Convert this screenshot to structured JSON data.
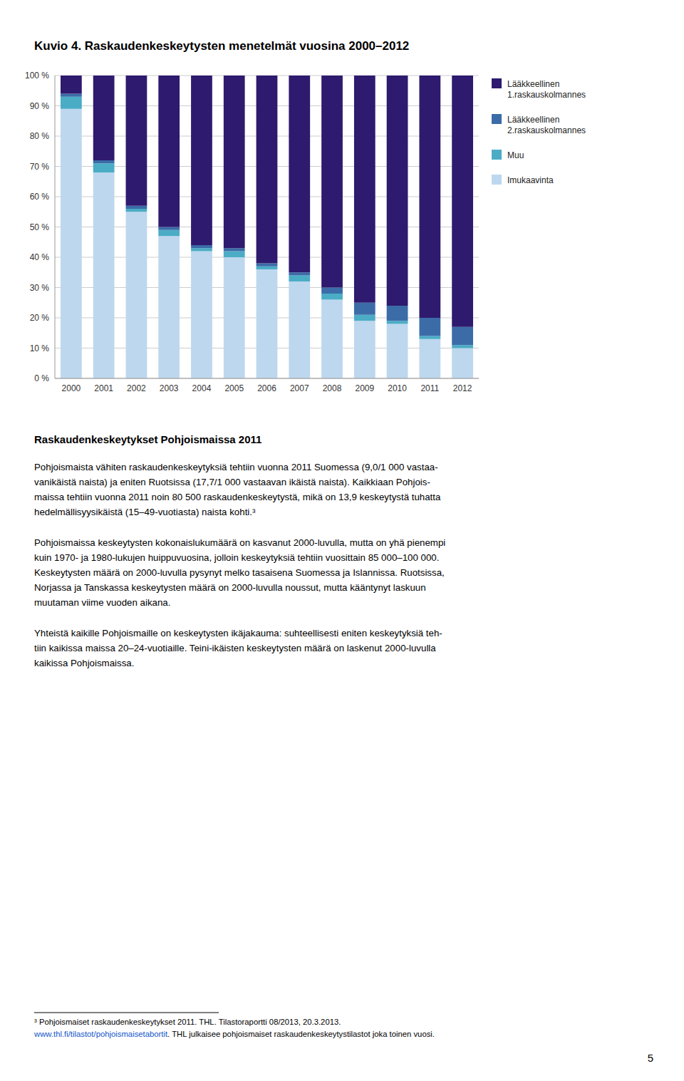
{
  "chart_data": {
    "type": "bar",
    "stacked": true,
    "title": "Kuvio 4. Raskaudenkeskeytysten menetelmät vuosina 2000–2012",
    "categories": [
      "2000",
      "2001",
      "2002",
      "2003",
      "2004",
      "2005",
      "2006",
      "2007",
      "2008",
      "2009",
      "2010",
      "2011",
      "2012"
    ],
    "series": [
      {
        "name": "Imukaavinta",
        "color": "#BDD7EE",
        "values": [
          89,
          68,
          55,
          47,
          42,
          40,
          36,
          32,
          26,
          19,
          18,
          13,
          10
        ]
      },
      {
        "name": "Muu",
        "color": "#4BACC6",
        "values": [
          4,
          3,
          1,
          2,
          1,
          2,
          1,
          2,
          2,
          2,
          1,
          1,
          1
        ]
      },
      {
        "name": "Lääkkeellinen\n2.raskauskolmannes",
        "color": "#3B6CA8",
        "values": [
          1,
          1,
          1,
          1,
          1,
          1,
          1,
          1,
          2,
          4,
          5,
          6,
          6
        ]
      },
      {
        "name": "Lääkkeellinen\n1.raskauskolmannes",
        "color": "#2E1A6E",
        "values": [
          6,
          28,
          43,
          50,
          56,
          57,
          62,
          65,
          70,
          75,
          76,
          80,
          83
        ]
      }
    ],
    "ylim": [
      0,
      100
    ],
    "yticks": [
      {
        "value": 0,
        "label": "0 %"
      },
      {
        "value": 10,
        "label": "10 %"
      },
      {
        "value": 20,
        "label": "20 %"
      },
      {
        "value": 30,
        "label": "30 %"
      },
      {
        "value": 40,
        "label": "40 %"
      },
      {
        "value": 50,
        "label": "50 %"
      },
      {
        "value": 60,
        "label": "60 %"
      },
      {
        "value": 70,
        "label": "70 %"
      },
      {
        "value": 80,
        "label": "80 %"
      },
      {
        "value": 90,
        "label": "90 %"
      },
      {
        "value": 100,
        "label": "100 %"
      }
    ],
    "grid": true,
    "legend": "right",
    "annotations": [
      "Raskaudenkeskeytykset Pohjoismaissa 2011",
      "Pohjoismaista vähiten raskaudenkeskeytyksiä tehtiin vuonna 2011 Suomessa (9,0/1 000 vastaa-\nvanikäistä naista) ja eniten Ruotsissa (17,7/1 000 vastaavan ikäistä naista). Kaikkiaan Pohjois-\nmaissa tehtiin vuonna 2011 noin 80 500 raskaudenkeskeytystä, mikä on 13,9 keskeytystä tuhatta\nhedelmällisyysikäistä (15–49-vuotiasta) naista kohti.³",
      "Pohjoismaissa keskeytysten kokonaislukumäärä on kasvanut 2000-luvulla, mutta on yhä pienempi\nkuin 1970- ja 1980-lukujen huippuvuosina, jolloin keskeytyksiä tehtiin vuosittain 85 000–100 000.\nKeskeytysten määrä on 2000-luvulla pysynyt melko tasaisena Suomessa ja Islannissa. Ruotsissa,\nNorjassa ja Tanskassa keskeytysten määrä on 2000-luvulla noussut, mutta kääntynyt laskuun\nmuutaman viime vuoden aikana.",
      "Yhteistä kaikille Pohjoismaille on keskeytysten ikäjakauma: suhteellisesti eniten keskeytyksiä teh-\ntiin kaikissa maissa 20–24-vuotiaille. Teini-ikäisten keskeytysten määrä on laskenut 2000-luvulla\nkaikissa Pohjoismaissa.",
      "³ Pohjoismaiset raskaudenkeskeytykset 2011. THL. Tilastoraportti 08/2013, 20.3.2013.",
      "www.thl.fi/tilastot/pohjoismaisetabortit",
      ". THL julkaisee pohjoismaiset raskaudenkeskeytystilastot joka toinen vuosi.",
      "5"
    ]
  }
}
